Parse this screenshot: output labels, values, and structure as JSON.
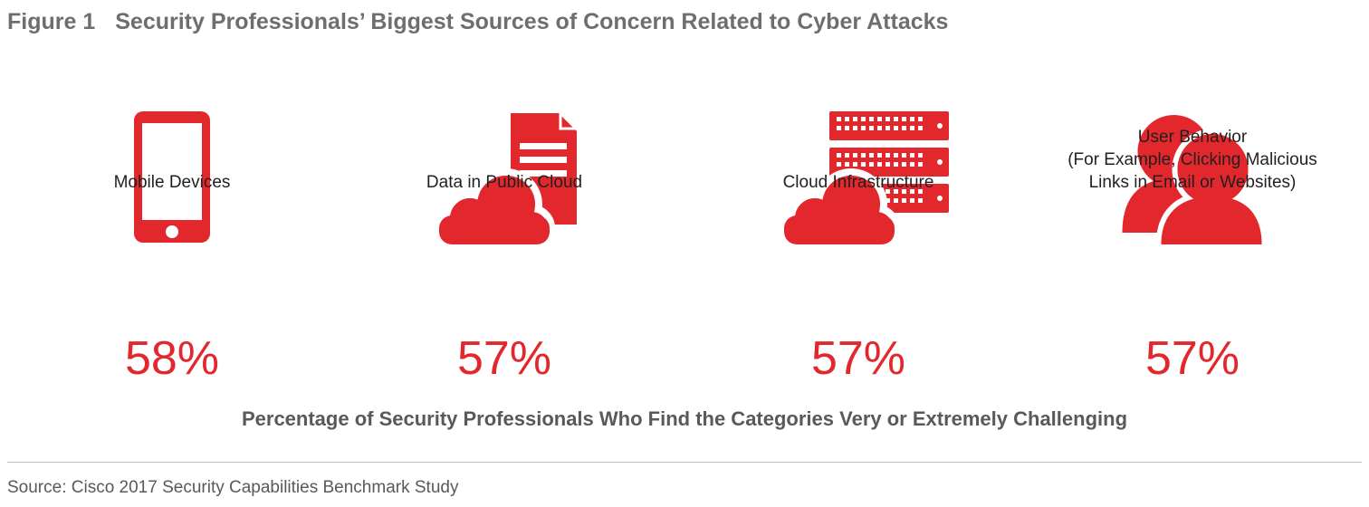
{
  "figure_label": "Figure 1",
  "title": "Security Professionals’ Biggest Sources of Concern Related to Cyber Attacks",
  "accent_color": "#e2282d",
  "chart_data": {
    "type": "bar",
    "title": "Security Professionals’ Biggest Sources of Concern Related to Cyber Attacks",
    "categories": [
      "Mobile Devices",
      "Data in Public Cloud",
      "Cloud Infrastructure",
      "User Behavior (For Example, Clicking Malicious Links in Email or Websites)"
    ],
    "values": [
      58,
      57,
      57,
      57
    ],
    "unit": "%",
    "ylabel": "Percentage of Security Professionals Who Find the Categories Very or Extremely Challenging"
  },
  "items": [
    {
      "icon": "mobile-phone-icon",
      "label_lines": [
        "Mobile Devices"
      ],
      "value": "58%"
    },
    {
      "icon": "cloud-document-icon",
      "label_lines": [
        "Data in Public Cloud"
      ],
      "value": "57%"
    },
    {
      "icon": "cloud-server-icon",
      "label_lines": [
        "Cloud Infrastructure"
      ],
      "value": "57%"
    },
    {
      "icon": "users-icon",
      "label_lines": [
        "User Behavior",
        "(For Example, Clicking Malicious",
        "Links in Email or Websites)"
      ],
      "value": "57%"
    }
  ],
  "subtitle": "Percentage of Security Professionals Who Find the Categories Very or Extremely Challenging",
  "source": "Source: Cisco 2017 Security Capabilities Benchmark Study"
}
